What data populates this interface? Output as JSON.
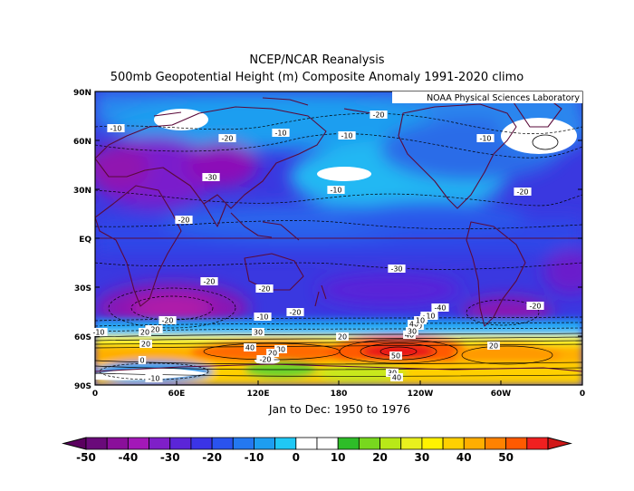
{
  "header": {
    "title": "NCEP/NCAR Reanalysis",
    "subtitle": "500mb Geopotential Height (m) Composite Anomaly 1991-2020 climo"
  },
  "map": {
    "credit": "NOAA Physical Sciences Laboratory",
    "period": "Jan to Dec: 1950 to 1976",
    "lat_labels": [
      "90N",
      "60N",
      "30N",
      "EQ",
      "30S",
      "60S",
      "90S"
    ],
    "lon_labels": [
      "0",
      "60E",
      "120E",
      "180",
      "120W",
      "60W",
      "0"
    ],
    "contour_labels": [
      {
        "text": "-10"
      },
      {
        "text": "-20"
      },
      {
        "text": "-10"
      },
      {
        "text": "-10"
      },
      {
        "text": "-20"
      },
      {
        "text": "-10"
      },
      {
        "text": "-30"
      },
      {
        "text": "-10"
      },
      {
        "text": "-20"
      },
      {
        "text": "-20"
      },
      {
        "text": "-30"
      },
      {
        "text": "-20"
      },
      {
        "text": "-20"
      },
      {
        "text": "-20"
      },
      {
        "text": "-40"
      },
      {
        "text": "-20"
      },
      {
        "text": "-10"
      },
      {
        "text": "-20"
      },
      {
        "text": "-10"
      },
      {
        "text": "20"
      },
      {
        "text": "20"
      },
      {
        "text": "30"
      },
      {
        "text": "40"
      },
      {
        "text": "20"
      },
      {
        "text": "50"
      },
      {
        "text": "40"
      },
      {
        "text": "30"
      },
      {
        "text": "10"
      },
      {
        "text": "0"
      },
      {
        "text": "-20"
      },
      {
        "text": "-10"
      },
      {
        "text": "20"
      },
      {
        "text": "30"
      },
      {
        "text": "40"
      },
      {
        "text": "0"
      },
      {
        "text": "20"
      },
      {
        "text": "-10"
      },
      {
        "text": "10"
      },
      {
        "text": "30"
      },
      {
        "text": "40"
      },
      {
        "text": "-20"
      }
    ]
  },
  "colorbar": {
    "labels": [
      "-50",
      "-40",
      "-30",
      "-20",
      "-10",
      "0",
      "10",
      "20",
      "30",
      "40",
      "50"
    ],
    "colors": [
      "#6a0a7a",
      "#8a0f9a",
      "#a318b8",
      "#7f1fc8",
      "#5b25d8",
      "#3b34e6",
      "#2a53ee",
      "#2478f0",
      "#1d9ef0",
      "#20c8f5",
      "#ffffff",
      "#ffffff",
      "#2ebd28",
      "#78d81e",
      "#b8e818",
      "#e8f01e",
      "#fff200",
      "#ffd000",
      "#ffae00",
      "#ff8200",
      "#ff5a00",
      "#f02020"
    ],
    "min_color": "#5a005f",
    "max_color": "#d01818"
  },
  "colors": {
    "frame": "#000000",
    "coast": "#5a0a3a",
    "contour": "#000000",
    "label_bg": "#ffffff"
  }
}
